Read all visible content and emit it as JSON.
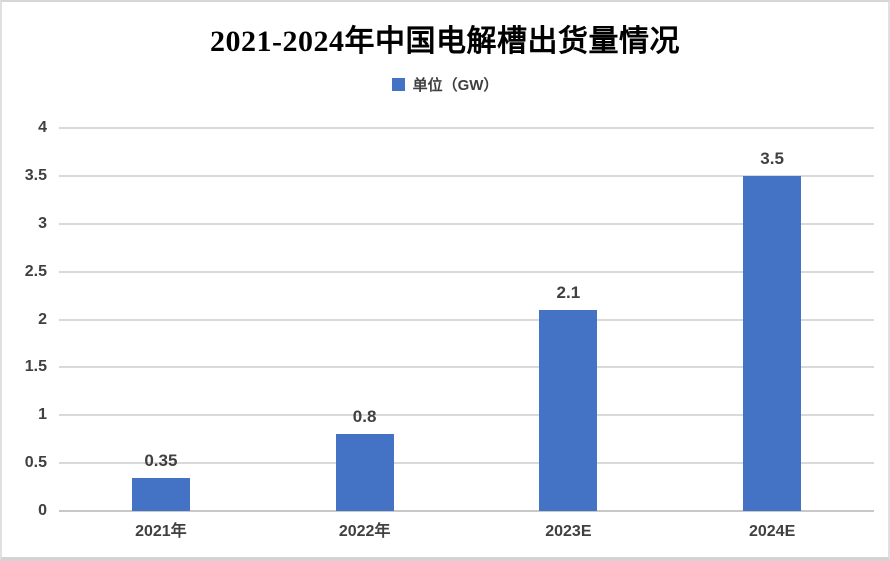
{
  "chart_data": {
    "type": "bar",
    "title": "2021-2024年中国电解槽出货量情况",
    "categories": [
      "2021年",
      "2022年",
      "2023E",
      "2024E"
    ],
    "values": [
      0.35,
      0.8,
      2.1,
      3.5
    ],
    "value_labels": [
      "0.35",
      "0.8",
      "2.1",
      "3.5"
    ],
    "series": [
      {
        "name": "单位（GW）",
        "values": [
          0.35,
          0.8,
          2.1,
          3.5
        ]
      }
    ],
    "xlabel": "",
    "ylabel": "",
    "ylim": [
      0,
      4
    ],
    "yticks": [
      0,
      0.5,
      1,
      1.5,
      2,
      2.5,
      3,
      3.5,
      4
    ],
    "ytick_labels": [
      "0",
      "0.5",
      "1",
      "1.5",
      "2",
      "2.5",
      "3",
      "3.5",
      "4"
    ],
    "grid": true,
    "legend_position": "top"
  },
  "legend": {
    "label": "单位（GW）",
    "swatch_icon": "legend-square-icon"
  },
  "colors": {
    "bar": "#4472C4",
    "title_text": "#000000",
    "axis_text": "#404040",
    "gridline": "#D9D9D9",
    "axis_line": "#C8C8C8",
    "background": "#FFFFFF"
  }
}
